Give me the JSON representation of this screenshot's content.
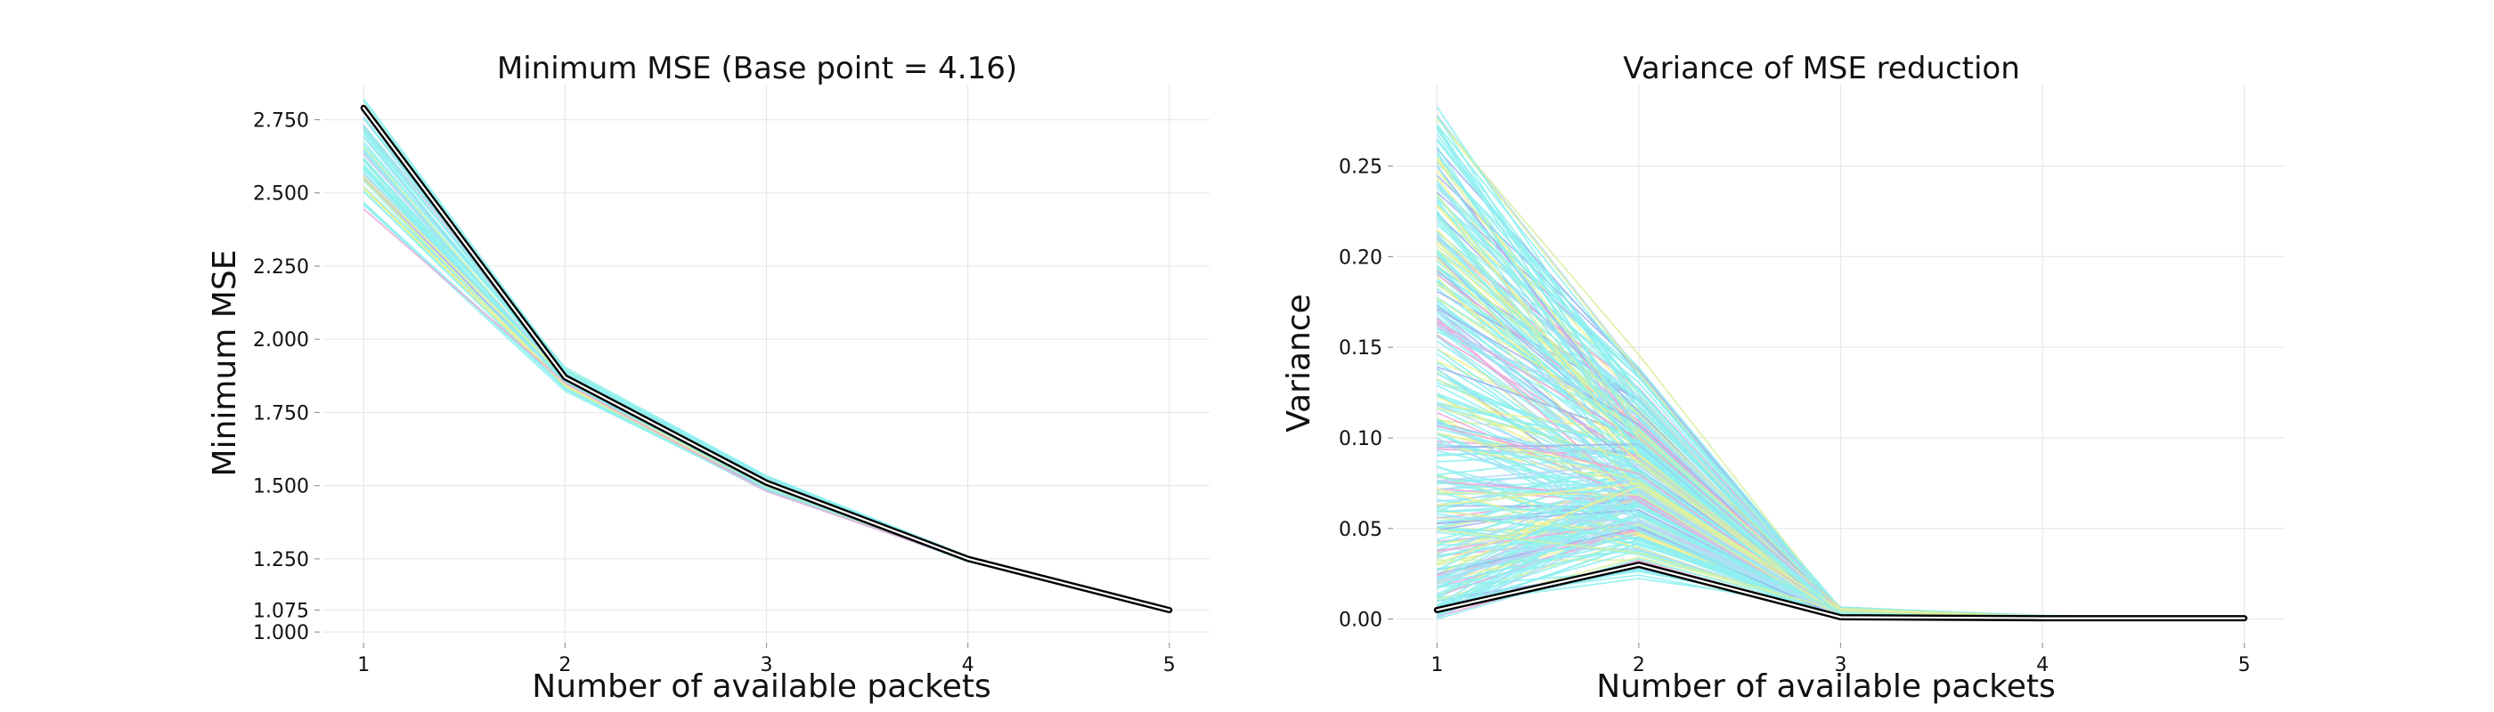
{
  "chart_data": [
    {
      "type": "line",
      "title": "Minimum MSE (Base point = 4.16)",
      "xlabel": "Number of available packets",
      "ylabel": "Minimum MSE",
      "x": [
        1,
        2,
        3,
        4,
        5
      ],
      "xlim": [
        0.8,
        5.2
      ],
      "ylim": [
        0.97,
        2.87
      ],
      "xticks": [
        "1",
        "2",
        "3",
        "4",
        "5"
      ],
      "yticks": [
        1.0,
        1.075,
        1.25,
        1.5,
        1.75,
        2.0,
        2.25,
        2.5,
        2.75
      ],
      "ytick_labels": [
        "1.000",
        "1.075",
        "1.250",
        "1.500",
        "1.750",
        "2.000",
        "2.250",
        "2.500",
        "2.750"
      ],
      "grid": true,
      "highlight_series": {
        "name": "selected",
        "color": "#000000",
        "values": [
          2.79,
          1.87,
          1.51,
          1.25,
          1.075
        ]
      },
      "series_envelope": {
        "count": 60,
        "min": [
          2.38,
          1.82,
          1.47,
          1.24,
          1.075
        ],
        "max": [
          2.85,
          1.91,
          1.54,
          1.26,
          1.08
        ]
      },
      "palette": [
        "#8ef0f0",
        "#a0b4f0",
        "#f0a8d8",
        "#d8f0a0",
        "#f0f08e",
        "#b8d8f8"
      ]
    },
    {
      "type": "line",
      "title": "Variance of MSE reduction",
      "xlabel": "Number of available packets",
      "ylabel": "Variance",
      "x": [
        1,
        2,
        3,
        4,
        5
      ],
      "xlim": [
        0.8,
        5.2
      ],
      "ylim": [
        -0.012,
        0.295
      ],
      "xticks": [
        "1",
        "2",
        "3",
        "4",
        "5"
      ],
      "yticks": [
        0.0,
        0.05,
        0.1,
        0.15,
        0.2,
        0.25
      ],
      "ytick_labels": [
        "0.00",
        "0.05",
        "0.10",
        "0.15",
        "0.20",
        "0.25"
      ],
      "grid": true,
      "highlight_series": {
        "name": "selected",
        "color": "#000000",
        "values": [
          0.005,
          0.03,
          0.001,
          0.0005,
          0.0005
        ]
      },
      "series_envelope": {
        "count": 300,
        "min": [
          0.0,
          0.02,
          0.0,
          0.0,
          0.0
        ],
        "max": [
          0.283,
          0.155,
          0.007,
          0.002,
          0.001
        ]
      },
      "palette": [
        "#8ef0f0",
        "#a0b4f0",
        "#f0a8d8",
        "#d8f0a0",
        "#f0f08e",
        "#b8d8f8"
      ]
    }
  ]
}
